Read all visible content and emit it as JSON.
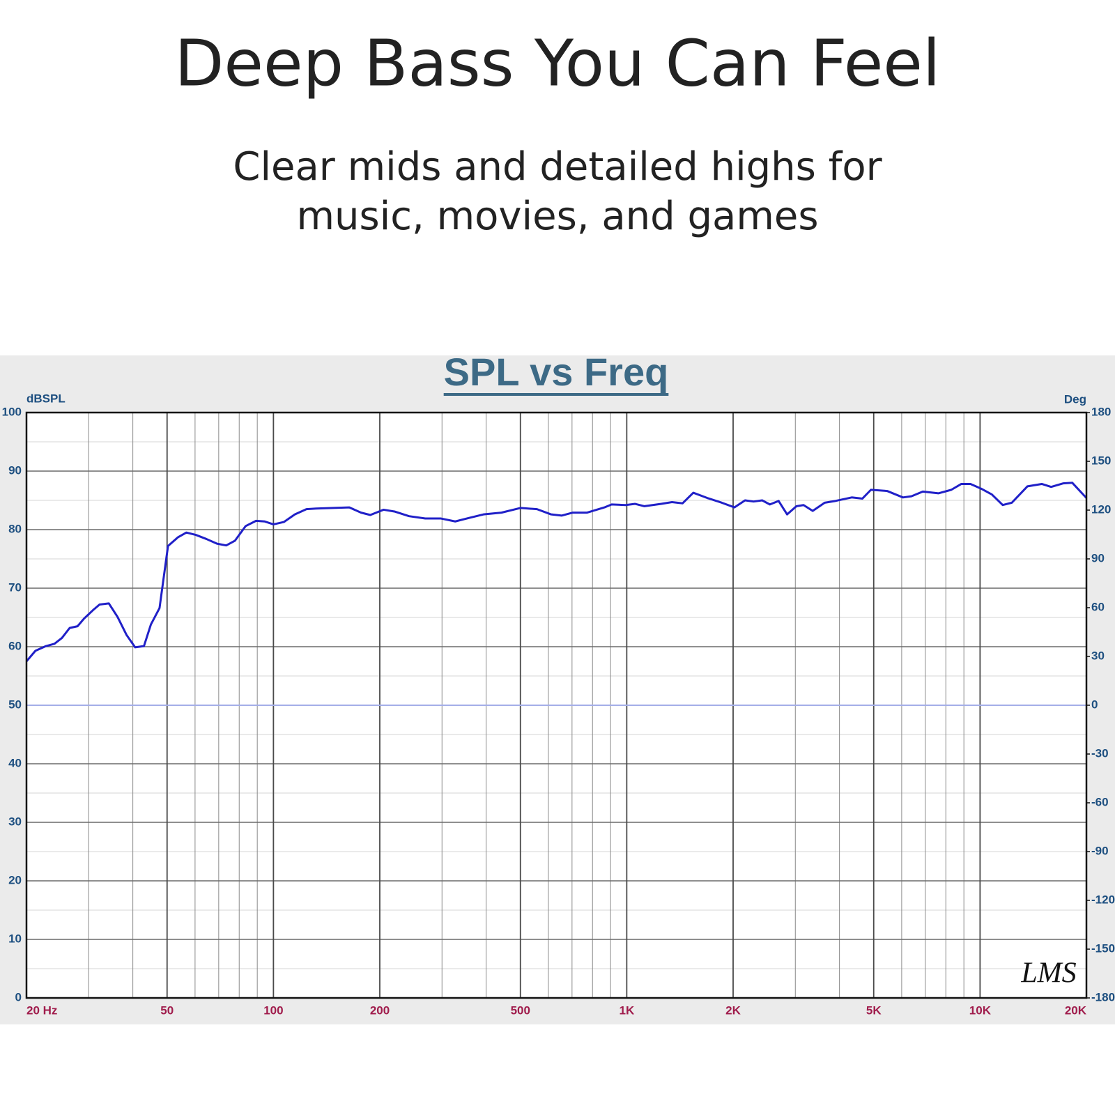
{
  "header": {
    "title": "Deep Bass You Can Feel",
    "subtitle_lines": [
      "Clear mids and detailed highs for",
      "music, movies, and games"
    ]
  },
  "chart_data": {
    "type": "line",
    "title": "SPL vs Freq",
    "y_label": "dBSPL",
    "y2_label": "Deg",
    "watermark": "LMS",
    "x_scale": "log",
    "xlim": [
      20,
      20000
    ],
    "xticks": [
      {
        "value": 20,
        "label": "20 Hz"
      },
      50,
      100,
      200,
      500,
      {
        "value": 1000,
        "label": "1K"
      },
      {
        "value": 2000,
        "label": "2K"
      },
      {
        "value": 5000,
        "label": "5K"
      },
      {
        "value": 10000,
        "label": "10K"
      },
      {
        "value": 20000,
        "label": "20K"
      }
    ],
    "x_minor_grid": [
      30,
      40,
      60,
      70,
      80,
      90,
      300,
      400,
      600,
      700,
      800,
      900,
      3000,
      4000,
      6000,
      7000,
      8000,
      9000
    ],
    "ylim": [
      0,
      100
    ],
    "yticks": [
      0,
      10,
      20,
      30,
      40,
      50,
      60,
      70,
      80,
      90,
      100
    ],
    "y_minor_grid": [
      5,
      15,
      25,
      35,
      45,
      55,
      65,
      75,
      85,
      95
    ],
    "y2lim": [
      -180,
      180
    ],
    "y2ticks": [
      -180,
      -150,
      -120,
      -90,
      -60,
      -30,
      0,
      30,
      60,
      90,
      120,
      150,
      180
    ],
    "grid": true,
    "series": [
      {
        "color": "#2020c8",
        "x": [
          20,
          21.2,
          22.7,
          24,
          25.2,
          26.5,
          27.9,
          29.1,
          30.8,
          32.2,
          34.2,
          36.2,
          38.4,
          40.6,
          43,
          45,
          47.6,
          50.3,
          53.7,
          56.7,
          60.3,
          64.6,
          69.2,
          73.5,
          77.8,
          83.4,
          89.3,
          94.4,
          100,
          107,
          115,
          124,
          132,
          148,
          164,
          177,
          188,
          205,
          220,
          242,
          269,
          298,
          327,
          358,
          393,
          442,
          500,
          557,
          611,
          655,
          702,
          771,
          865,
          906,
          993,
          1056,
          1122,
          1253,
          1343,
          1439,
          1543,
          1691,
          1857,
          2017,
          2162,
          2286,
          2417,
          2541,
          2690,
          2844,
          3022,
          3165,
          3360,
          3633,
          3896,
          4333,
          4645,
          4910,
          5459,
          6050,
          6395,
          6886,
          7620,
          8290,
          8850,
          9395,
          10070,
          10800,
          11590,
          12300,
          13620,
          14950,
          15890,
          17180,
          18240,
          20000
        ],
        "values": [
          57.5,
          59.3,
          60.1,
          60.5,
          61.5,
          63.2,
          63.5,
          64.8,
          66.2,
          67.2,
          67.4,
          65.1,
          62,
          59.9,
          60.1,
          63.8,
          66.6,
          77.2,
          78.7,
          79.5,
          79.1,
          78.4,
          77.6,
          77.3,
          78.1,
          80.6,
          81.5,
          81.4,
          80.9,
          81.3,
          82.6,
          83.5,
          83.6,
          83.7,
          83.8,
          82.9,
          82.5,
          83.4,
          83.1,
          82.3,
          81.9,
          81.9,
          81.4,
          82,
          82.6,
          82.9,
          83.7,
          83.5,
          82.6,
          82.4,
          82.9,
          82.9,
          83.8,
          84.3,
          84.2,
          84.4,
          84,
          84.4,
          84.7,
          84.5,
          86.3,
          85.4,
          84.6,
          83.8,
          85,
          84.8,
          85,
          84.3,
          84.9,
          82.6,
          84,
          84.2,
          83.2,
          84.6,
          84.9,
          85.5,
          85.3,
          86.8,
          86.6,
          85.5,
          85.7,
          86.5,
          86.2,
          86.8,
          87.8,
          87.8,
          87,
          86,
          84.2,
          84.6,
          87.4,
          87.8,
          87.3,
          87.9,
          88,
          85.4
        ]
      },
      {
        "color": "#a4aee8",
        "axis": "y2",
        "x": [
          20,
          20000
        ],
        "values": [
          0,
          0
        ]
      }
    ]
  }
}
